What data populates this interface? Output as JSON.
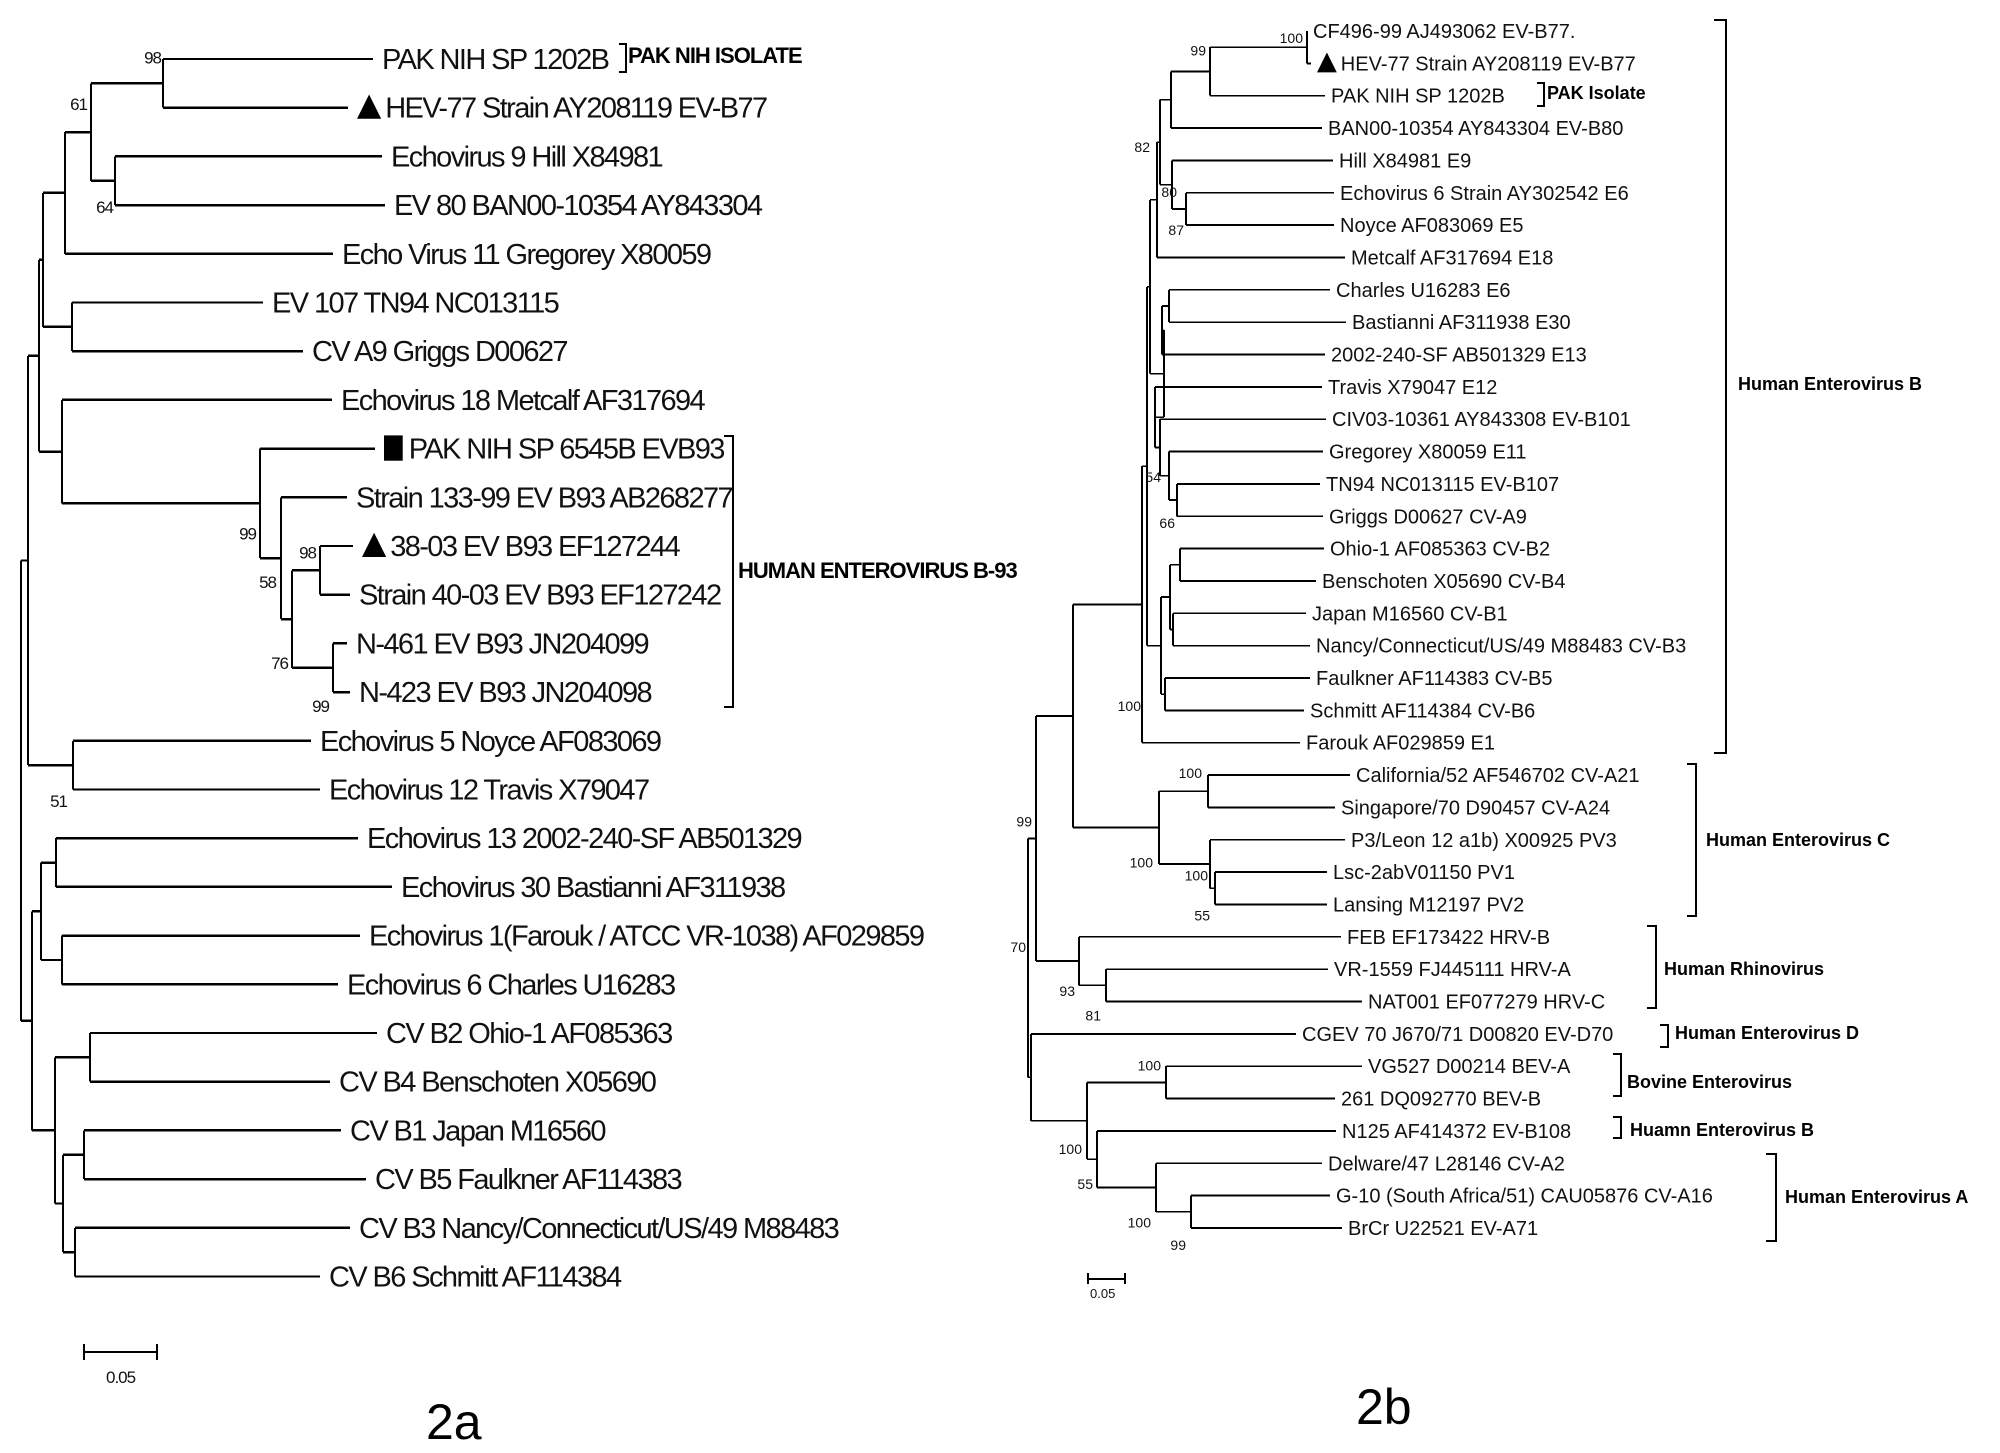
{
  "figure_a": {
    "panel_label": "2a",
    "scale_bar_label": "0.05",
    "leaves": [
      {
        "label": "PAK NIH SP 1202B",
        "marker": "none"
      },
      {
        "label": "HEV-77 Strain AY208119 EV-B77",
        "marker": "triangle"
      },
      {
        "label": "Echovirus 9 Hill X84981",
        "marker": "none"
      },
      {
        "label": "EV 80 BAN00-10354 AY843304",
        "marker": "none"
      },
      {
        "label": "Echo Virus 11 Gregorey X80059",
        "marker": "none"
      },
      {
        "label": "EV 107 TN94 NC013115",
        "marker": "none"
      },
      {
        "label": "CV A9 Griggs D00627",
        "marker": "none"
      },
      {
        "label": "Echovirus 18 Metcalf AF317694",
        "marker": "none"
      },
      {
        "label": "PAK NIH SP 6545B EVB93",
        "marker": "square"
      },
      {
        "label": "Strain 133-99 EV B93 AB268277",
        "marker": "none"
      },
      {
        "label": "38-03 EV B93 EF127244",
        "marker": "triangle"
      },
      {
        "label": "Strain 40-03 EV B93 EF127242",
        "marker": "none"
      },
      {
        "label": "N-461 EV B93 JN204099",
        "marker": "none"
      },
      {
        "label": "N-423 EV B93 JN204098",
        "marker": "none"
      },
      {
        "label": "Echovirus 5 Noyce AF083069",
        "marker": "none"
      },
      {
        "label": "Echovirus 12 Travis X79047",
        "marker": "none"
      },
      {
        "label": "Echovirus 13 2002-240-SF AB501329",
        "marker": "none"
      },
      {
        "label": "Echovirus 30 Bastianni AF311938",
        "marker": "none"
      },
      {
        "label": "Echovirus 1(Farouk / ATCC VR-1038) AF029859",
        "marker": "none"
      },
      {
        "label": "Echovirus 6 Charles U16283",
        "marker": "none"
      },
      {
        "label": "CV B2 Ohio-1 AF085363",
        "marker": "none"
      },
      {
        "label": "CV B4 Benschoten X05690",
        "marker": "none"
      },
      {
        "label": "CV B1 Japan M16560",
        "marker": "none"
      },
      {
        "label": "CV B5 Faulkner AF114383",
        "marker": "none"
      },
      {
        "label": "CV B3 Nancy/Connecticut/US/49 M88483",
        "marker": "none"
      },
      {
        "label": "CV B6 Schmitt AF114384",
        "marker": "none"
      }
    ],
    "bootstrap": {
      "n98a": "98",
      "n61": "61",
      "n64": "64",
      "n99a": "99",
      "n58": "58",
      "n98b": "98",
      "n76": "76",
      "n99b": "99",
      "n51": "51"
    },
    "clades": [
      {
        "label": "PAK NIH ISOLATE"
      },
      {
        "label": "HUMAN ENTEROVIRUS B-93"
      }
    ]
  },
  "figure_b": {
    "panel_label": "2b",
    "scale_bar_label": "0.05",
    "leaves": [
      {
        "label": "CF496-99 AJ493062 EV-B77.",
        "marker": "none"
      },
      {
        "label": "HEV-77 Strain AY208119 EV-B77",
        "marker": "triangle"
      },
      {
        "label": "PAK NIH SP 1202B",
        "marker": "none"
      },
      {
        "label": "BAN00-10354 AY843304 EV-B80",
        "marker": "none"
      },
      {
        "label": "Hill X84981 E9",
        "marker": "none"
      },
      {
        "label": "Echovirus 6 Strain AY302542 E6",
        "marker": "none"
      },
      {
        "label": "Noyce AF083069 E5",
        "marker": "none"
      },
      {
        "label": "Metcalf AF317694 E18",
        "marker": "none"
      },
      {
        "label": "Charles U16283 E6",
        "marker": "none"
      },
      {
        "label": "Bastianni AF311938 E30",
        "marker": "none"
      },
      {
        "label": "2002-240-SF AB501329 E13",
        "marker": "none"
      },
      {
        "label": "Travis X79047 E12",
        "marker": "none"
      },
      {
        "label": "CIV03-10361 AY843308 EV-B101",
        "marker": "none"
      },
      {
        "label": "Gregorey X80059 E11",
        "marker": "none"
      },
      {
        "label": "TN94 NC013115 EV-B107",
        "marker": "none"
      },
      {
        "label": "Griggs D00627 CV-A9",
        "marker": "none"
      },
      {
        "label": "Ohio-1 AF085363 CV-B2",
        "marker": "none"
      },
      {
        "label": "Benschoten X05690 CV-B4",
        "marker": "none"
      },
      {
        "label": "Japan M16560 CV-B1",
        "marker": "none"
      },
      {
        "label": "Nancy/Connecticut/US/49 M88483 CV-B3",
        "marker": "none"
      },
      {
        "label": "Faulkner AF114383 CV-B5",
        "marker": "none"
      },
      {
        "label": "Schmitt AF114384 CV-B6",
        "marker": "none"
      },
      {
        "label": "Farouk AF029859 E1",
        "marker": "none"
      },
      {
        "label": "California/52 AF546702 CV-A21",
        "marker": "none"
      },
      {
        "label": "Singapore/70 D90457 CV-A24",
        "marker": "none"
      },
      {
        "label": "P3/Leon 12 a1b) X00925 PV3",
        "marker": "none"
      },
      {
        "label": "Lsc-2abV01150 PV1",
        "marker": "none"
      },
      {
        "label": "Lansing M12197 PV2",
        "marker": "none"
      },
      {
        "label": "FEB EF173422 HRV-B",
        "marker": "none"
      },
      {
        "label": "VR-1559 FJ445111 HRV-A",
        "marker": "none"
      },
      {
        "label": "NAT001 EF077279 HRV-C",
        "marker": "none"
      },
      {
        "label": "CGEV 70 J670/71 D00820 EV-D70",
        "marker": "none"
      },
      {
        "label": "VG527 D00214 BEV-A",
        "marker": "none"
      },
      {
        "label": "261 DQ092770 BEV-B",
        "marker": "none"
      },
      {
        "label": "N125 AF414372 EV-B108",
        "marker": "none"
      },
      {
        "label": "Delware/47 L28146 CV-A2",
        "marker": "none"
      },
      {
        "label": "G-10 (South Africa/51) CAU05876 CV-A16",
        "marker": "none"
      },
      {
        "label": "BrCr U22521 EV-A71",
        "marker": "none"
      }
    ],
    "bootstrap": {
      "n100a": "100",
      "n99a": "99",
      "n82": "82",
      "n80": "80",
      "n87": "87",
      "n66": "66",
      "n54": "54",
      "n100b": "100",
      "n99b": "99",
      "n70": "70",
      "n100c1": "100",
      "n100c2": "100",
      "n100c3": "100",
      "n55c": "55",
      "n93": "93",
      "n81": "81",
      "n100d1": "100",
      "n100d2": "100",
      "n55d": "55",
      "n100d3": "100",
      "n99d": "99"
    },
    "clades": [
      {
        "label": "PAK Isolate"
      },
      {
        "label": "Human Enterovirus B"
      },
      {
        "label": "Human Enterovirus C"
      },
      {
        "label": "Human Rhinovirus"
      },
      {
        "label": "Human Enterovirus D"
      },
      {
        "label": "Bovine Enterovirus"
      },
      {
        "label": "Huamn Enterovirus B"
      },
      {
        "label": "Human Enterovirus A"
      }
    ]
  }
}
